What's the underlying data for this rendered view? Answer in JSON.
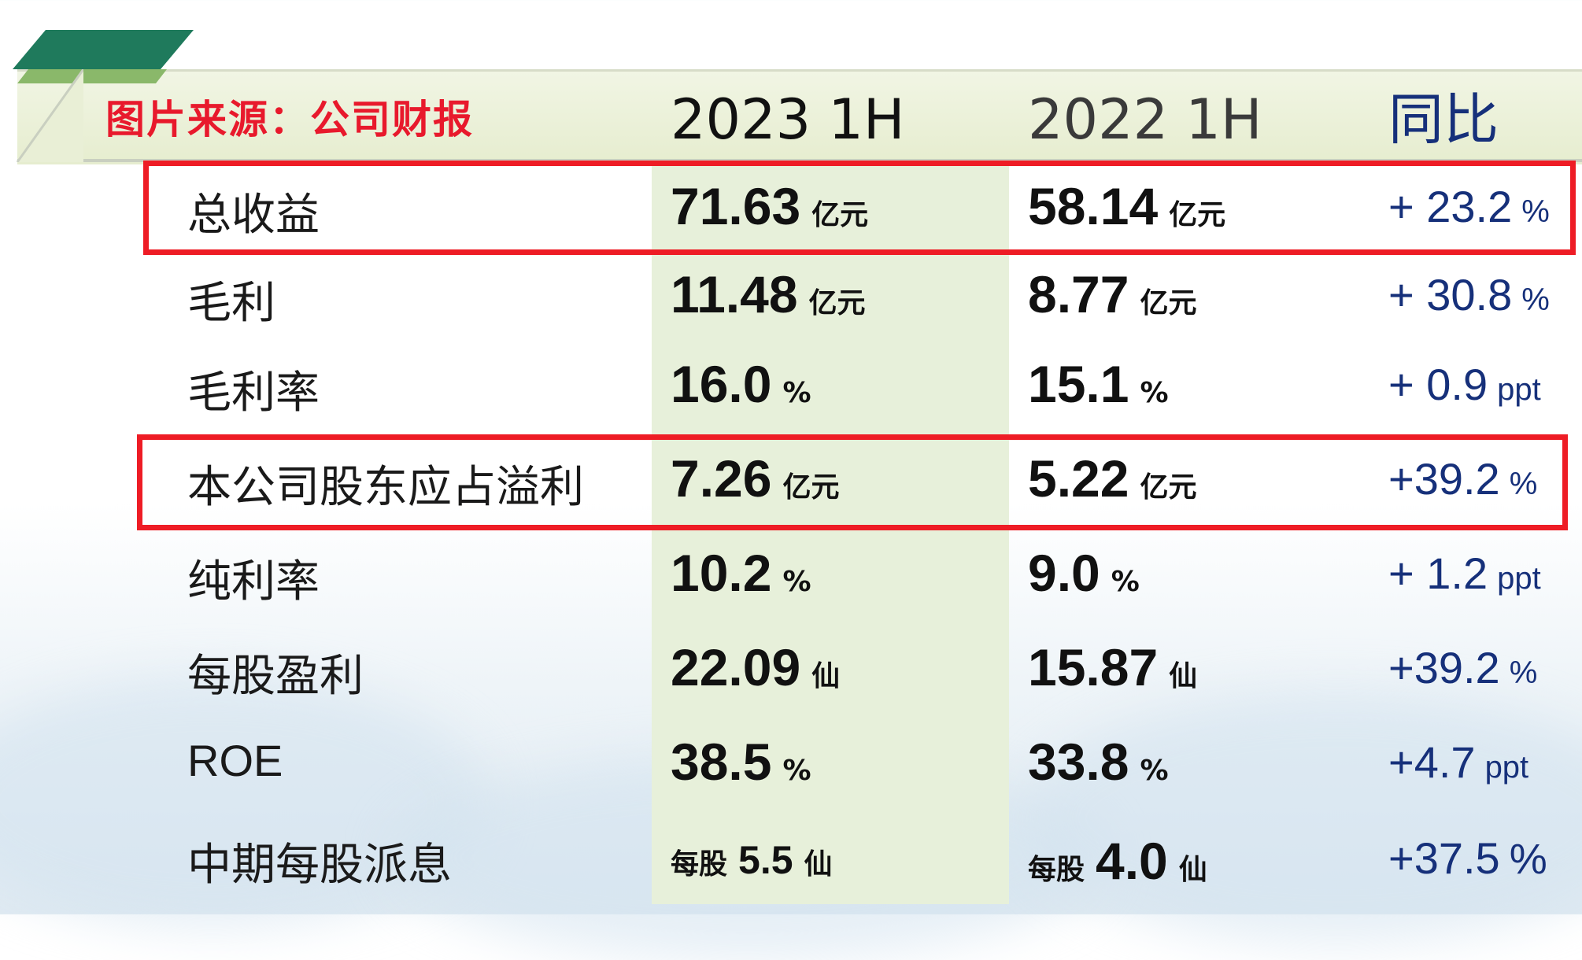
{
  "source_label": "图片来源：公司财报",
  "headers": {
    "col1": "2023 1H",
    "col2": "2022 1H",
    "col3": "同比"
  },
  "rows": [
    {
      "label": "总收益",
      "v1": {
        "num": "71.63",
        "unit": "亿元"
      },
      "v2": {
        "num": "58.14",
        "unit": "亿元"
      },
      "yoy": {
        "num": "+ 23.2",
        "unit": "%"
      }
    },
    {
      "label": "毛利",
      "v1": {
        "num": "11.48",
        "unit": "亿元"
      },
      "v2": {
        "num": "8.77",
        "unit": "亿元"
      },
      "yoy": {
        "num": "+ 30.8",
        "unit": "%"
      }
    },
    {
      "label": "毛利率",
      "v1": {
        "num": "16.0",
        "unit": "%"
      },
      "v2": {
        "num": "15.1",
        "unit": "%"
      },
      "yoy": {
        "num": "+ 0.9",
        "unit": "ppt"
      }
    },
    {
      "label": "本公司股东应占溢利",
      "v1": {
        "num": "7.26",
        "unit": "亿元"
      },
      "v2": {
        "num": "5.22",
        "unit": "亿元"
      },
      "yoy": {
        "num": "+39.2",
        "unit": "%"
      }
    },
    {
      "label": "纯利率",
      "v1": {
        "num": "10.2",
        "unit": "%"
      },
      "v2": {
        "num": "9.0",
        "unit": "%"
      },
      "yoy": {
        "num": "+ 1.2",
        "unit": "ppt"
      }
    },
    {
      "label": "每股盈利",
      "v1": {
        "num": "22.09",
        "unit": "仙"
      },
      "v2": {
        "num": "15.87",
        "unit": "仙"
      },
      "yoy": {
        "num": "+39.2",
        "unit": "%"
      }
    },
    {
      "label": "ROE",
      "v1": {
        "num": "38.5",
        "unit": "%"
      },
      "v2": {
        "num": "33.8",
        "unit": "%"
      },
      "yoy": {
        "num": "+4.7",
        "unit": "ppt"
      }
    },
    {
      "label": "中期每股派息",
      "v1": {
        "pre": "每股",
        "num": "5.5",
        "unit": "仙"
      },
      "v2": {
        "pre": "每股",
        "num": "4.0",
        "unit": "仙"
      },
      "yoy": {
        "num": "+37.5",
        "unit": "%"
      }
    }
  ],
  "colors": {
    "accent_red": "#ee1c25",
    "yoy_blue": "#16307a",
    "highlight_green": "#e7f0da"
  }
}
